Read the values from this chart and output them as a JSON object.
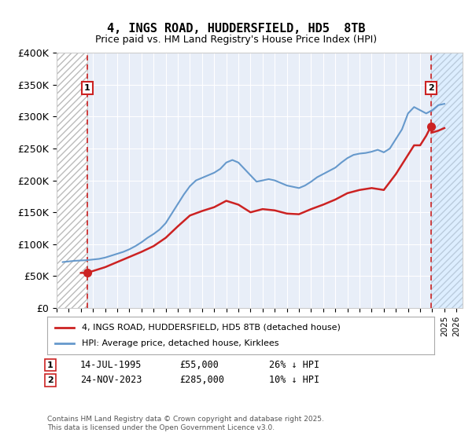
{
  "title": "4, INGS ROAD, HUDDERSFIELD, HD5  8TB",
  "subtitle": "Price paid vs. HM Land Registry's House Price Index (HPI)",
  "ylabel": "",
  "yticks": [
    0,
    50000,
    100000,
    150000,
    200000,
    250000,
    300000,
    350000,
    400000
  ],
  "ytick_labels": [
    "£0",
    "£50K",
    "£100K",
    "£150K",
    "£200K",
    "£250K",
    "£300K",
    "£350K",
    "£400K"
  ],
  "xmin": 1993.0,
  "xmax": 2026.5,
  "ymin": 0,
  "ymax": 400000,
  "point1_x": 1995.53,
  "point1_y": 55000,
  "point1_label": "1",
  "point1_date": "14-JUL-1995",
  "point1_price": "£55,000",
  "point1_hpi": "26% ↓ HPI",
  "point2_x": 2023.9,
  "point2_y": 285000,
  "point2_label": "2",
  "point2_date": "24-NOV-2023",
  "point2_price": "£285,000",
  "point2_hpi": "10% ↓ HPI",
  "hpi_line_color": "#6699cc",
  "price_line_color": "#cc2222",
  "background_color": "#ffffff",
  "plot_bg_color": "#e8eef8",
  "hatch_color": "#cccccc",
  "legend_label1": "4, INGS ROAD, HUDDERSFIELD, HD5 8TB (detached house)",
  "legend_label2": "HPI: Average price, detached house, Kirklees",
  "footer": "Contains HM Land Registry data © Crown copyright and database right 2025.\nThis data is licensed under the Open Government Licence v3.0.",
  "hpi_data_x": [
    1993.5,
    1994.0,
    1994.5,
    1995.0,
    1995.5,
    1996.0,
    1996.5,
    1997.0,
    1997.5,
    1998.0,
    1998.5,
    1999.0,
    1999.5,
    2000.0,
    2000.5,
    2001.0,
    2001.5,
    2002.0,
    2002.5,
    2003.0,
    2003.5,
    2004.0,
    2004.5,
    2005.0,
    2005.5,
    2006.0,
    2006.5,
    2007.0,
    2007.5,
    2008.0,
    2008.5,
    2009.0,
    2009.5,
    2010.0,
    2010.5,
    2011.0,
    2011.5,
    2012.0,
    2012.5,
    2013.0,
    2013.5,
    2014.0,
    2014.5,
    2015.0,
    2015.5,
    2016.0,
    2016.5,
    2017.0,
    2017.5,
    2018.0,
    2018.5,
    2019.0,
    2019.5,
    2020.0,
    2020.5,
    2021.0,
    2021.5,
    2022.0,
    2022.5,
    2023.0,
    2023.5,
    2024.0,
    2024.5,
    2025.0
  ],
  "hpi_data_y": [
    72000,
    73000,
    74000,
    74500,
    75000,
    76000,
    77000,
    79000,
    82000,
    85000,
    88000,
    92000,
    97000,
    103000,
    110000,
    116000,
    123000,
    133000,
    148000,
    163000,
    178000,
    191000,
    200000,
    204000,
    208000,
    212000,
    218000,
    228000,
    232000,
    228000,
    218000,
    208000,
    198000,
    200000,
    202000,
    200000,
    196000,
    192000,
    190000,
    188000,
    192000,
    198000,
    205000,
    210000,
    215000,
    220000,
    228000,
    235000,
    240000,
    242000,
    243000,
    245000,
    248000,
    244000,
    250000,
    265000,
    280000,
    305000,
    315000,
    310000,
    305000,
    310000,
    318000,
    320000
  ],
  "price_data_x": [
    1995.0,
    1995.53,
    1996.0,
    1997.0,
    1998.0,
    1999.0,
    2000.0,
    2001.0,
    2002.0,
    2003.0,
    2004.0,
    2005.0,
    2006.0,
    2007.0,
    2008.0,
    2009.0,
    2010.0,
    2011.0,
    2012.0,
    2013.0,
    2014.0,
    2015.0,
    2016.0,
    2017.0,
    2018.0,
    2019.0,
    2020.0,
    2021.0,
    2022.0,
    2022.5,
    2023.0,
    2023.5,
    2023.9,
    2024.0,
    2024.5,
    2025.0
  ],
  "price_data_y": [
    55000,
    55000,
    58000,
    64000,
    72000,
    80000,
    88000,
    97000,
    110000,
    128000,
    145000,
    152000,
    158000,
    168000,
    162000,
    150000,
    155000,
    153000,
    148000,
    147000,
    155000,
    162000,
    170000,
    180000,
    185000,
    188000,
    185000,
    210000,
    240000,
    255000,
    255000,
    270000,
    285000,
    275000,
    278000,
    282000
  ]
}
